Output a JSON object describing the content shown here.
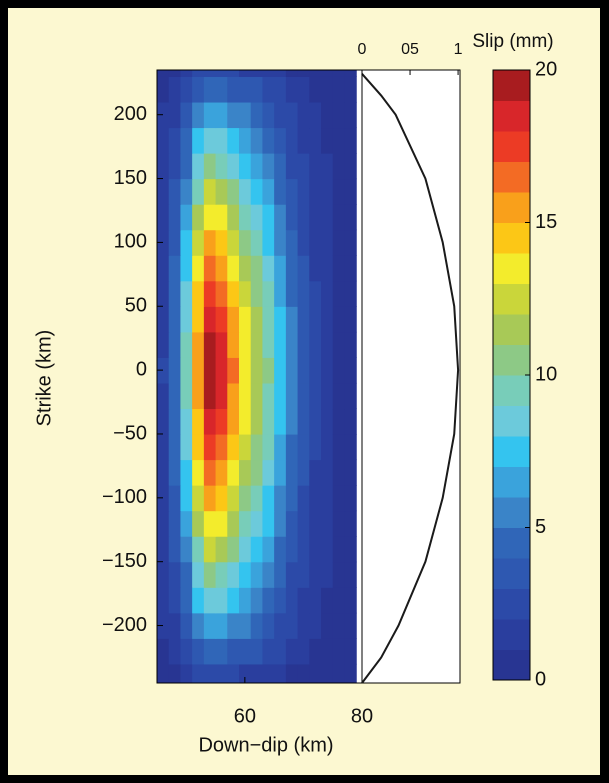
{
  "chart_data": [
    {
      "type": "contour",
      "x": [
        46,
        48,
        50,
        52,
        54,
        56,
        58,
        60,
        62,
        64,
        66,
        68,
        70,
        72,
        74,
        76,
        78
      ],
      "y": [
        -240,
        -220,
        -200,
        -180,
        -160,
        -140,
        -120,
        -100,
        -80,
        -60,
        -40,
        -20,
        0,
        20,
        40,
        60,
        80,
        100,
        120,
        140,
        160,
        180,
        200,
        220,
        240
      ],
      "z": [
        [
          0,
          0,
          1,
          2,
          2,
          2,
          2,
          1,
          1,
          1,
          1,
          0,
          0,
          0,
          0,
          0,
          0
        ],
        [
          0,
          1,
          2,
          3,
          4,
          4,
          3,
          3,
          3,
          2,
          2,
          1,
          1,
          0,
          0,
          0,
          0
        ],
        [
          1,
          1,
          3,
          5,
          6,
          6,
          5,
          5,
          4,
          3,
          2,
          2,
          1,
          1,
          0,
          0,
          0
        ],
        [
          1,
          2,
          4,
          7,
          8,
          8,
          7,
          6,
          5,
          4,
          3,
          2,
          1,
          1,
          0,
          0,
          0
        ],
        [
          1,
          2,
          4,
          8,
          10,
          9,
          8,
          7,
          6,
          5,
          4,
          2,
          2,
          1,
          1,
          0,
          0
        ],
        [
          1,
          3,
          5,
          9,
          12,
          11,
          10,
          8,
          7,
          6,
          4,
          3,
          2,
          1,
          1,
          0,
          0
        ],
        [
          1,
          3,
          6,
          11,
          13,
          13,
          11,
          9,
          8,
          7,
          5,
          3,
          2,
          1,
          1,
          0,
          0
        ],
        [
          1,
          3,
          7,
          12,
          15,
          14,
          12,
          10,
          9,
          7,
          5,
          4,
          2,
          1,
          1,
          0,
          0
        ],
        [
          1,
          4,
          7,
          13,
          16,
          15,
          13,
          11,
          10,
          8,
          6,
          4,
          3,
          1,
          1,
          0,
          0
        ],
        [
          1,
          4,
          8,
          14,
          17,
          16,
          14,
          12,
          10,
          9,
          6,
          4,
          3,
          2,
          1,
          0,
          0
        ],
        [
          1,
          4,
          8,
          14,
          18,
          17,
          15,
          13,
          11,
          9,
          7,
          5,
          3,
          2,
          1,
          0,
          0
        ],
        [
          1,
          4,
          9,
          15,
          19,
          18,
          15,
          13,
          11,
          9,
          7,
          5,
          3,
          2,
          1,
          0,
          0
        ],
        [
          2,
          4,
          9,
          15,
          19,
          18,
          16,
          13,
          11,
          10,
          7,
          5,
          3,
          2,
          1,
          0,
          0
        ],
        [
          1,
          4,
          9,
          15,
          19,
          18,
          15,
          13,
          11,
          9,
          7,
          5,
          3,
          2,
          1,
          0,
          0
        ],
        [
          1,
          4,
          8,
          14,
          18,
          17,
          15,
          13,
          11,
          9,
          7,
          5,
          3,
          2,
          1,
          0,
          0
        ],
        [
          1,
          4,
          8,
          14,
          17,
          16,
          14,
          12,
          10,
          9,
          6,
          4,
          3,
          2,
          1,
          0,
          0
        ],
        [
          1,
          4,
          7,
          13,
          16,
          15,
          13,
          11,
          10,
          8,
          6,
          4,
          3,
          1,
          1,
          0,
          0
        ],
        [
          1,
          3,
          7,
          12,
          15,
          14,
          12,
          10,
          9,
          7,
          5,
          4,
          2,
          1,
          1,
          0,
          0
        ],
        [
          1,
          3,
          6,
          11,
          13,
          13,
          11,
          9,
          8,
          7,
          5,
          3,
          2,
          1,
          1,
          0,
          0
        ],
        [
          1,
          3,
          5,
          9,
          12,
          11,
          10,
          8,
          7,
          6,
          4,
          3,
          2,
          1,
          1,
          0,
          0
        ],
        [
          1,
          2,
          4,
          8,
          10,
          9,
          8,
          7,
          6,
          5,
          4,
          2,
          2,
          1,
          1,
          0,
          0
        ],
        [
          1,
          2,
          4,
          7,
          8,
          8,
          7,
          6,
          5,
          4,
          3,
          2,
          1,
          1,
          0,
          0,
          0
        ],
        [
          1,
          1,
          3,
          5,
          6,
          6,
          5,
          5,
          4,
          3,
          2,
          2,
          1,
          1,
          0,
          0,
          0
        ],
        [
          0,
          1,
          2,
          3,
          4,
          4,
          3,
          3,
          3,
          2,
          2,
          1,
          1,
          0,
          0,
          0,
          0
        ],
        [
          0,
          0,
          1,
          2,
          2,
          2,
          2,
          1,
          1,
          1,
          1,
          0,
          0,
          0,
          0,
          0,
          0
        ]
      ],
      "xlim": [
        45,
        80
      ],
      "ylim": [
        -245,
        235
      ],
      "xticks": [
        60,
        80
      ],
      "yticks": [
        {
          "value": -200,
          "label": "−200"
        },
        {
          "value": -150,
          "label": "−150"
        },
        {
          "value": -100,
          "label": "−100"
        },
        {
          "value": -50,
          "label": "−50"
        },
        0,
        50,
        100,
        150,
        200
      ],
      "xlabel": "Down−dip (km)",
      "ylabel": "Strike (km)",
      "colors": [
        "#283592",
        "#2a3e9e",
        "#2c4aa8",
        "#2e58b1",
        "#3066b8",
        "#3a84c8",
        "#3aa3dc",
        "#34c4ef",
        "#6ccadb",
        "#78cdb9",
        "#8dc986",
        "#a8c957",
        "#cad63a",
        "#f3ec2c",
        "#fcc716",
        "#f9a01b",
        "#f36b24",
        "#ec3b25",
        "#d8262a",
        "#a81c1f"
      ],
      "clim": [
        0,
        20
      ],
      "cticks": [
        0,
        5,
        10,
        15,
        20
      ],
      "colorbar_title": "Slip (mm)"
    },
    {
      "type": "line",
      "y": [
        -245,
        -225,
        -200,
        -150,
        -100,
        -50,
        0,
        50,
        100,
        150,
        200,
        215,
        232
      ],
      "values": [
        0,
        0.2,
        0.38,
        0.66,
        0.84,
        0.96,
        1,
        0.96,
        0.84,
        0.66,
        0.35,
        0.2,
        0
      ],
      "xlim": [
        0,
        1.02
      ],
      "ylim": [
        -245,
        235
      ],
      "xticks": [
        0,
        {
          "value": 0.5,
          "label": "05"
        },
        1
      ],
      "color": "#1a1a1a"
    }
  ]
}
